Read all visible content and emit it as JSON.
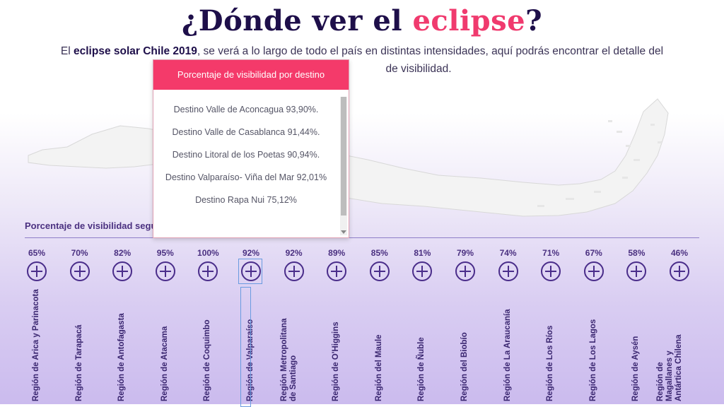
{
  "header": {
    "title_main": "¿Dónde ver el ",
    "title_accent": "eclipse",
    "title_end": "?",
    "intro_start": "El ",
    "intro_bold": "eclipse solar Chile 2019",
    "intro_rest_line1": ", se verá a lo largo de todo el país en distintas intensidades, aquí podrás encontrar el detalle del",
    "intro_line2_visible": "de visibilidad."
  },
  "popup": {
    "title": "Porcentaje de visibilidad por destino",
    "items": [
      "Destino Valle de Aconcagua 93,90%.",
      "Destino Valle de Casablanca 91,44%.",
      "Destino Litoral de los Poetas 90,94%.",
      "Destino Valparaíso- Viña del Mar 92,01%",
      "Destino Rapa Nui 75,12%"
    ]
  },
  "section_label": "Porcentaje de visibilidad segú",
  "regions": [
    {
      "pct": "65%",
      "name": "Región de Arica y Parinacota"
    },
    {
      "pct": "70%",
      "name": "Región de Tarapacá"
    },
    {
      "pct": "82%",
      "name": "Región de Antofagasta"
    },
    {
      "pct": "95%",
      "name": "Región de Atacama"
    },
    {
      "pct": "100%",
      "name": "Región de Coquimbo"
    },
    {
      "pct": "92%",
      "name": "Región de Valparaíso"
    },
    {
      "pct": "92%",
      "name": "Región Metropolitana de Santiago"
    },
    {
      "pct": "89%",
      "name": "Región de O'Higgins"
    },
    {
      "pct": "85%",
      "name": "Región del Maule"
    },
    {
      "pct": "81%",
      "name": "Región de Ñuble"
    },
    {
      "pct": "79%",
      "name": "Región del Biobío"
    },
    {
      "pct": "74%",
      "name": "Región de La Araucanía"
    },
    {
      "pct": "71%",
      "name": "Región de Los Ríos"
    },
    {
      "pct": "67%",
      "name": "Región de Los Lagos"
    },
    {
      "pct": "58%",
      "name": "Región de Aysén"
    },
    {
      "pct": "46%",
      "name": "Región de Magallanes y Antártica Chilena"
    }
  ],
  "colors": {
    "accent": "#f03a6e",
    "title": "#1e0f4a",
    "region_purple": "#4a2d8a",
    "popup_header": "#f43a6a"
  }
}
